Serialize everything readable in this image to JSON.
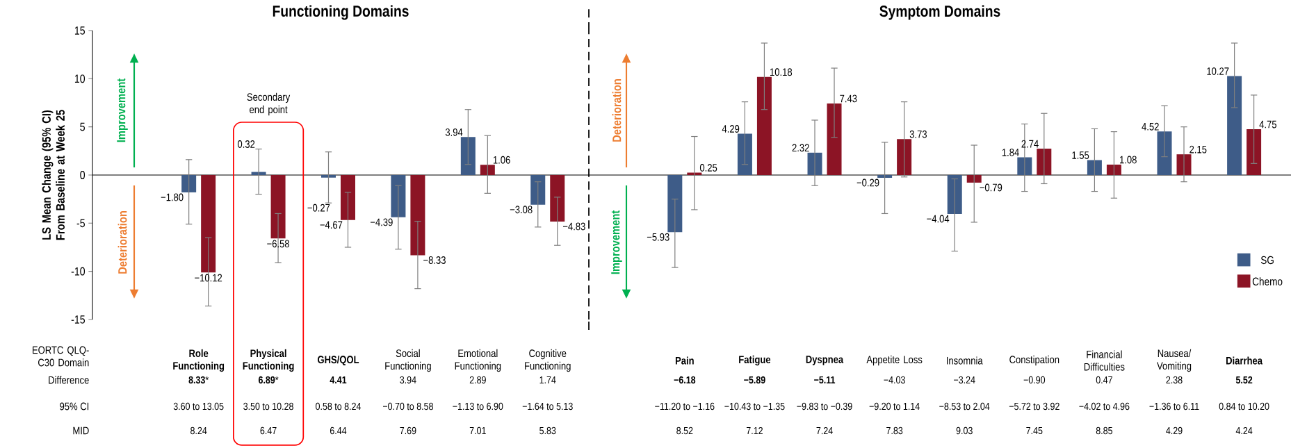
{
  "chart_data": [
    {
      "type": "bar",
      "title": "Functioning Domains",
      "ylabel": "LS Mean Change (95% CI) From Baseline at Week 25",
      "xlabel": "EORTC QLQ-C30 Domain",
      "categories": [
        "**Role Functioning**",
        "**Physical Functioning**",
        "**GHS/QOL**",
        "Social Functioning",
        "Emotional Functioning",
        "Cognitive Functioning"
      ],
      "ylim": [
        -15,
        15
      ],
      "yticks": [
        -15,
        -10,
        -5,
        0,
        5,
        10,
        15
      ],
      "series": [
        {
          "color": "#3e5c88",
          "values": [
            -1.8,
            0.32,
            -0.27,
            -4.39,
            3.94,
            -3.08
          ],
          "errors": [
            [
              -5.1,
              1.6
            ],
            [
              -2.0,
              2.7
            ],
            [
              -2.9,
              2.4
            ],
            [
              -7.7,
              -1.1
            ],
            [
              1.1,
              6.8
            ],
            [
              -5.4,
              -0.7
            ]
          ],
          "value_labels": [
            "−1.80",
            "0.32",
            "−0.27",
            "−4.39",
            "3.94",
            "−3.08"
          ]
        },
        {
          "color": "#8c1425",
          "values": [
            -10.12,
            -6.58,
            -4.67,
            -8.33,
            1.06,
            -4.83
          ],
          "errors": [
            [
              -13.6,
              -6.5
            ],
            [
              -9.1,
              -4.0
            ],
            [
              -7.5,
              -1.8
            ],
            [
              -11.8,
              -4.8
            ],
            [
              -1.9,
              4.1
            ],
            [
              -7.3,
              -2.3
            ]
          ],
          "value_labels": [
            "−10.12",
            "−6.58",
            "−4.67",
            "−8.33",
            "1.06",
            "−4.83"
          ]
        }
      ],
      "annotations": [
        "Improvement",
        "Deterioration",
        "Secondary end point",
        "Difference",
        "95% CI",
        "MID",
        "**8.33***",
        "**6.89***",
        "**4.41**",
        "3.94",
        "2.89",
        "1.74",
        "3.60 to 13.05",
        "3.50 to 10.28",
        "0.58 to 8.24",
        "−0.70 to 8.58",
        "−1.13 to 6.90",
        "−1.64 to 5.13",
        "8.24",
        "6.47",
        "6.44",
        "7.69",
        "7.01",
        "5.83"
      ]
    },
    {
      "type": "bar",
      "title": "Symptom Domains",
      "tick_labels": "x",
      "legend": "bottom right",
      "categories": [
        "**Pain**",
        "**Fatigue**",
        "**Dyspnea**",
        "Appetite Loss",
        "Insomnia",
        "Constipation",
        "Financial Difficulties",
        "Nausea/ Vomiting",
        "**Diarrhea**"
      ],
      "ylim": [
        -15,
        15
      ],
      "series": [
        {
          "name": "SG",
          "color": "#3e5c88",
          "values": [
            -5.93,
            4.29,
            2.32,
            -0.29,
            -4.04,
            1.84,
            1.55,
            4.52,
            10.27
          ],
          "errors": [
            [
              -9.6,
              -2.5
            ],
            [
              1.1,
              7.6
            ],
            [
              -1.1,
              5.7
            ],
            [
              -4.0,
              3.4
            ],
            [
              -7.9,
              -0.4
            ],
            [
              -1.7,
              5.3
            ],
            [
              -1.7,
              4.8
            ],
            [
              1.9,
              7.2
            ],
            [
              7.0,
              13.7
            ]
          ],
          "value_labels": [
            "−5.93",
            "4.29",
            "2.32",
            "−0.29",
            "−4.04",
            "1.84",
            "1.55",
            "4.52",
            "10.27"
          ]
        },
        {
          "name": "Chemo",
          "color": "#8c1425",
          "values": [
            0.25,
            10.18,
            7.43,
            3.73,
            -0.79,
            2.74,
            1.08,
            2.15,
            4.75
          ],
          "errors": [
            [
              -3.6,
              4.0
            ],
            [
              6.8,
              13.7
            ],
            [
              3.9,
              11.1
            ],
            [
              -0.2,
              7.6
            ],
            [
              -4.9,
              3.1
            ],
            [
              -0.9,
              6.4
            ],
            [
              -2.4,
              4.5
            ],
            [
              -0.7,
              5.0
            ],
            [
              1.2,
              8.3
            ]
          ],
          "value_labels": [
            "0.25",
            "10.18",
            "7.43",
            "3.73",
            "−0.79",
            "2.74",
            "1.08",
            "2.15",
            "4.75"
          ]
        }
      ],
      "annotations": [
        "Deterioration",
        "Improvement",
        "**−6.18**",
        "**−5.89**",
        "**−5.11**",
        "−4.03",
        "−3.24",
        "−0.90",
        "0.47",
        "2.38",
        "**5.52**",
        "−11.20 to −1.16",
        "−10.43 to −1.35",
        "−9.83 to −0.39",
        "−9.20 to 1.14",
        "−8.53 to 2.04",
        "−5.72 to 3.92",
        "−4.02 to 4.96",
        "−1.36 to 6.11",
        "0.84 to 10.20",
        "8.52",
        "7.12",
        "7.24",
        "7.83",
        "9.03",
        "7.45",
        "8.85",
        "4.29",
        "4.24"
      ]
    }
  ]
}
